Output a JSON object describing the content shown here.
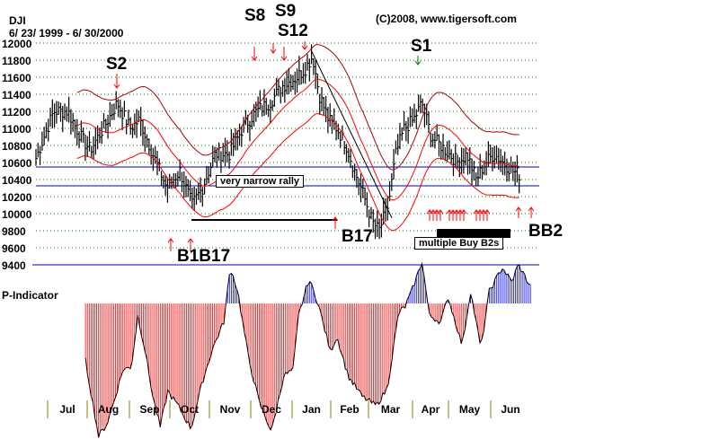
{
  "header": {
    "symbol": "DJI",
    "date_range": "6/ 23/ 1999 - 6/ 30/2000",
    "copyright": "(C)2008, www.tigersoft.com"
  },
  "chart_data": {
    "type": "line",
    "title": "DJI",
    "x_unit": "weeks since 6/23/1999",
    "ylim": [
      9400,
      12000
    ],
    "yticks": [
      12000,
      11800,
      11600,
      11400,
      11200,
      11000,
      10800,
      10600,
      10400,
      10200,
      10000,
      9800,
      9600,
      9400
    ],
    "months": [
      "Jul",
      "Aug",
      "Sep",
      "Oct",
      "Nov",
      "Dec",
      "Jan",
      "Feb",
      "Mar",
      "Apr",
      "May",
      "Jun"
    ],
    "price": {
      "name": "DJI weekly close (approx.)",
      "x": [
        0,
        1.9,
        3.4,
        4.8,
        5.8,
        7.2,
        8.7,
        10.1,
        11.1,
        12.5,
        14,
        15.4,
        16.7,
        17.8,
        19.2,
        20.7,
        22.1,
        23.6,
        25,
        26.4,
        27.9,
        28.8,
        29.6,
        30.3,
        31.3,
        32.2,
        33.2,
        34.1,
        35.1,
        36,
        36.7,
        37.7,
        38.5,
        39.4,
        40.4,
        41.3,
        42.3,
        43.3,
        44.2,
        45.2,
        46.1,
        47.1,
        48.1,
        49,
        50,
        51,
        51.9
      ],
      "close": [
        10650,
        11200,
        11200,
        10900,
        10750,
        11000,
        11300,
        11000,
        11100,
        10700,
        10300,
        10500,
        10100,
        10300,
        10700,
        10700,
        11000,
        11200,
        11300,
        11500,
        11600,
        11700,
        11850,
        11400,
        11100,
        11000,
        10800,
        10500,
        10200,
        9900,
        9800,
        10100,
        10700,
        11000,
        11100,
        11300,
        10900,
        10800,
        10700,
        10600,
        10700,
        10400,
        10600,
        10700,
        10600,
        10500,
        10450
      ]
    },
    "p_indicator": {
      "name": "P-Indicator",
      "x": [
        5.3,
        6.7,
        7.6,
        8.3,
        9.3,
        10.2,
        10.9,
        11.7,
        12.5,
        13.3,
        14.1,
        15.2,
        16.6,
        17.8,
        18.9,
        20.1,
        20.8,
        21.6,
        22,
        22.8,
        23.9,
        25.2,
        26.5,
        27.5,
        28.1,
        29.2,
        30.2,
        30.6,
        31.5,
        32.2,
        33.4,
        34.9,
        36.4,
        37.6,
        38.8,
        39.5,
        40.2,
        41.3,
        42.1,
        43.3,
        44.1,
        45.6,
        46.5,
        47.6,
        48.5,
        49.9,
        50.9,
        51.6,
        53
      ],
      "values": [
        -75,
        -174,
        -158,
        -130,
        -87,
        -83,
        -16,
        -63,
        -122,
        -162,
        -115,
        -134,
        -164,
        -103,
        -59,
        -24,
        47,
        16,
        -16,
        -75,
        -130,
        -168,
        -95,
        -87,
        -16,
        32,
        0,
        -20,
        -63,
        -43,
        -95,
        -122,
        -134,
        -111,
        -12,
        -4,
        16,
        55,
        -16,
        -24,
        8,
        -55,
        16,
        -59,
        16,
        47,
        28,
        51,
        20
      ]
    },
    "ylabel_lower": "P-Indicator",
    "annotations": [
      {
        "label": "S2",
        "color": "#ff0000"
      },
      {
        "label": "S8",
        "color": "#ff0000"
      },
      {
        "label": "S9",
        "color": "#ff0000"
      },
      {
        "label": "S12",
        "color": "#ff0000"
      },
      {
        "label": "S1",
        "color": "#008000"
      },
      {
        "label": "B1B17",
        "color": "#ff0000"
      },
      {
        "label": "B17",
        "color": "#ff0000"
      },
      {
        "label": "BB2",
        "color": "#ff0000"
      }
    ],
    "notes": [
      "very narrow rally",
      "multiple Buy B2s"
    ],
    "colors": {
      "bars": "#000000",
      "band_inner": "#ff0000",
      "band_outer": "#b00000",
      "grid": "#008000",
      "hline": "#0000c0",
      "p_neg": "#ff0000",
      "p_pos": "#0000ff"
    }
  }
}
